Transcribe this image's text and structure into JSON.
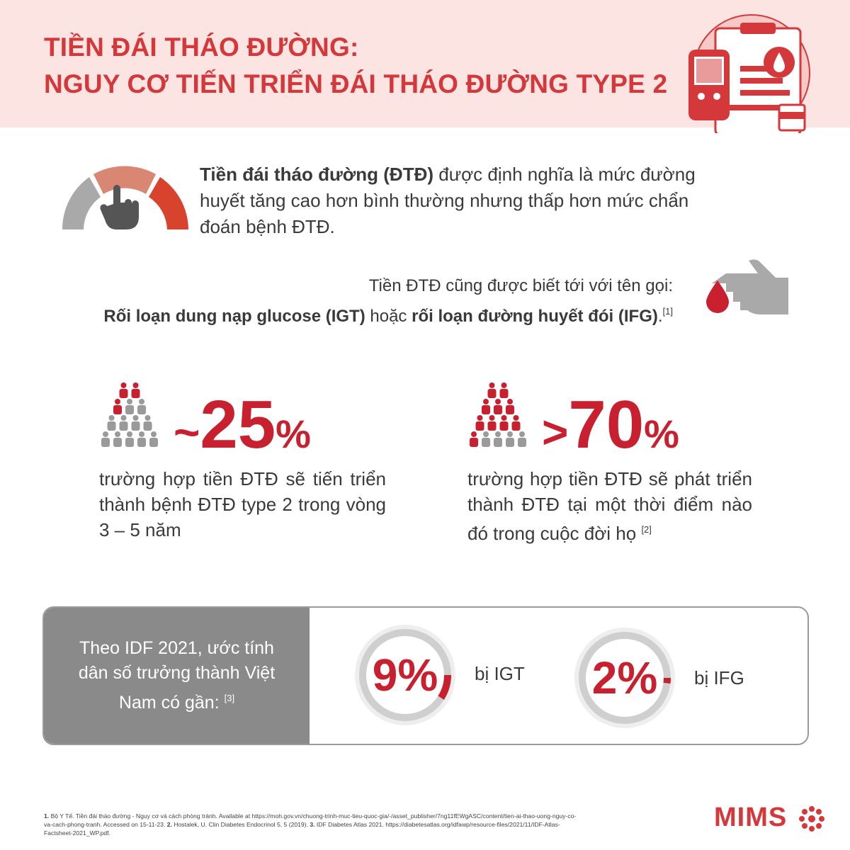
{
  "header": {
    "title_line1": "TIỀN ĐÁI THÁO ĐƯỜNG:",
    "title_line2": "NGUY CƠ TIẾN TRIỂN ĐÁI THÁO ĐƯỜNG TYPE 2"
  },
  "definition": {
    "bold": "Tiền đái tháo đường (ĐTĐ)",
    "text": "được định nghĩa là mức đường huyết tăng cao hơn bình thường nhưng thấp hơn mức chẩn đoán bệnh ĐTĐ."
  },
  "aka": {
    "line1": "Tiền ĐTĐ cũng được biết tới với tên gọi:",
    "igt": "Rối loạn dung nạp glucose (IGT)",
    "or": "hoặc",
    "ifg": "rối loạn đường huyết đói (IFG)",
    "end": ".",
    "ref": "[1]"
  },
  "stats": [
    {
      "prefix": "~",
      "value": 25,
      "unit": "%",
      "text": "trường hợp tiền ĐTĐ sẽ tiến triển thành bệnh ĐTĐ type 2 trong vòng 3 – 5 năm"
    },
    {
      "prefix": ">",
      "value": 70,
      "unit": "%",
      "text": "trường hợp tiền ĐTĐ sẽ phát triển thành ĐTĐ tại một thời điểm nào đó trong cuộc đời họ",
      "ref": "[2]"
    }
  ],
  "idf": {
    "label": "Theo IDF 2021, ước tính dân số trưởng thành Việt Nam có gần:",
    "ref": "[3]",
    "items": [
      {
        "value": 9,
        "unit": "%",
        "label": "bị IGT"
      },
      {
        "value": 2,
        "unit": "%",
        "label": "bị IFG"
      }
    ]
  },
  "footnotes": [
    {
      "num": "1.",
      "text": "Bộ Y Tế. Tiền đái tháo đường - Nguy cơ và cách phòng tránh. Available at https://moh.gov.vn/chuong-trinh-muc-tieu-quoc-gia/-/asset_publisher/7ng11fEWgASC/content/tien-ai-thao-uong-nguy-co-va-cach-phong-tranh. Accessed on 15-11-23."
    },
    {
      "num": "2.",
      "text": "Hostalek, U. Clin Diabetes Endocrinol 5, 5 (2019)."
    },
    {
      "num": "3.",
      "text": "IDF Diabetes Atlas 2021. https://diabetesatlas.org/idfawp/resource-files/2021/11/IDF-Atlas-Factsheet-2021_WP.pdf."
    }
  ],
  "logo": "MIMS"
}
